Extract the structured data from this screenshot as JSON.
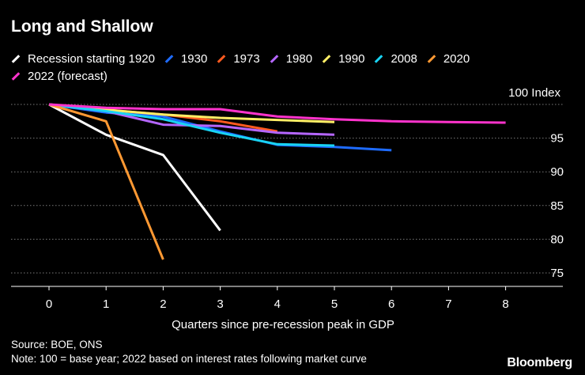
{
  "chart_data": {
    "type": "line",
    "title": "Long and Shallow",
    "xlabel": "Quarters since pre-recession peak in GDP",
    "ylabel": "",
    "y_unit_label": "100 Index",
    "x_ticks": [
      0,
      1,
      2,
      3,
      4,
      5,
      6,
      7,
      8
    ],
    "y_ticks": [
      75,
      80,
      85,
      90,
      95,
      100
    ],
    "xlim": [
      -0.6,
      9.1
    ],
    "ylim": [
      74.5,
      100.5
    ],
    "series": [
      {
        "name": "Recession starting 1920",
        "color": "#ffffff",
        "x": [
          0,
          1,
          2,
          3
        ],
        "values": [
          100,
          95.5,
          92.5,
          81.3
        ]
      },
      {
        "name": "1930",
        "color": "#1e6bff",
        "x": [
          0,
          1,
          2,
          3,
          4,
          5,
          6
        ],
        "values": [
          100,
          98.8,
          98.2,
          96,
          94,
          93.7,
          93.2
        ]
      },
      {
        "name": "1973",
        "color": "#ff5a1f",
        "x": [
          0,
          1,
          2,
          3,
          4
        ],
        "values": [
          100,
          99.2,
          98.5,
          97.5,
          96
        ]
      },
      {
        "name": "1980",
        "color": "#b566ff",
        "x": [
          0,
          1,
          2,
          3,
          4,
          5
        ],
        "values": [
          100,
          99,
          97,
          96.8,
          95.8,
          95.5
        ]
      },
      {
        "name": "1990",
        "color": "#ffee66",
        "x": [
          0,
          1,
          2,
          3,
          4,
          5
        ],
        "values": [
          100,
          99.2,
          98.5,
          98,
          97.7,
          97.4
        ]
      },
      {
        "name": "2008",
        "color": "#19d3f3",
        "x": [
          0,
          1,
          2,
          3,
          4,
          5
        ],
        "values": [
          100,
          99,
          97.8,
          95.8,
          94.1,
          93.9
        ]
      },
      {
        "name": "2020",
        "color": "#ff9933",
        "x": [
          0,
          1,
          2
        ],
        "values": [
          100,
          97.5,
          77
        ]
      },
      {
        "name": "2022 (forecast)",
        "color": "#ff33cc",
        "x": [
          0,
          1,
          2,
          3,
          4,
          5,
          6,
          7,
          8
        ],
        "values": [
          100,
          99.5,
          99.3,
          99.3,
          98.2,
          97.8,
          97.5,
          97.4,
          97.3
        ]
      }
    ]
  },
  "footer": {
    "source": "Source: BOE, ONS",
    "note": "Note: 100 = base year; 2022 based on interest rates following market curve",
    "brand": "Bloomberg"
  }
}
